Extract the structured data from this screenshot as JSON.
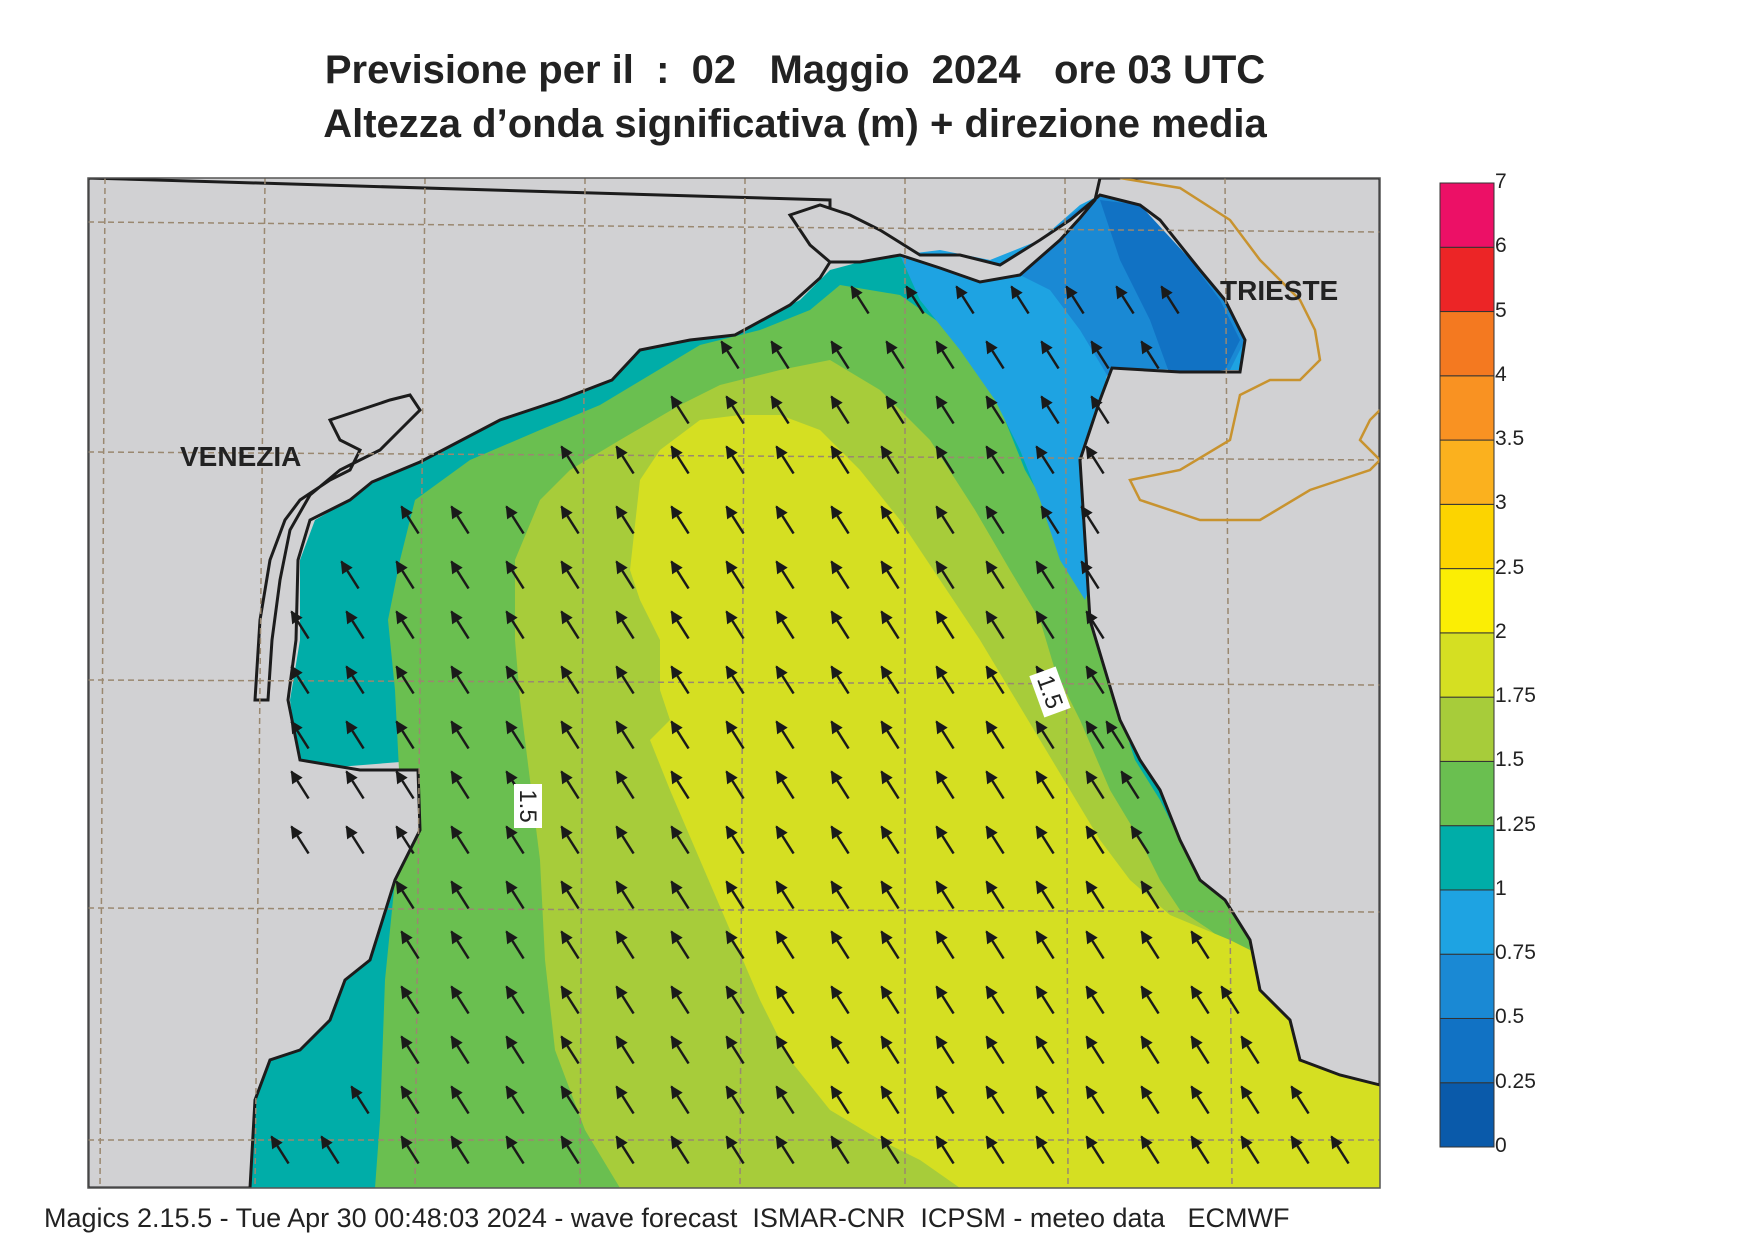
{
  "header": {
    "title_line1": "Previsione per il  :  02   Maggio  2024   ore 03 UTC",
    "title_line2": "Altezza d’onda significativa (m) + direzione media"
  },
  "map": {
    "cities": [
      {
        "name": "VENEZIA"
      },
      {
        "name": "TRIESTE"
      }
    ],
    "contour_labels": [
      "1.5",
      "1.5"
    ],
    "arrow_direction": "north-west"
  },
  "legend": {
    "ticks": [
      "0",
      "0.25",
      "0.5",
      "0.75",
      "1",
      "1.25",
      "1.5",
      "1.75",
      "2",
      "2.5",
      "3",
      "3.5",
      "4",
      "5",
      "6",
      "7"
    ],
    "colors": [
      "#0a5aaa",
      "#1172c4",
      "#1a89d4",
      "#1ea3e2",
      "#00ada8",
      "#6abf50",
      "#a7cc3a",
      "#d5df22",
      "#fbee04",
      "#fcd400",
      "#fbb11e",
      "#f99222",
      "#f47920",
      "#ec2526",
      "#ec1066"
    ]
  },
  "colors": {
    "land": "#d1d1d3",
    "coast": "#1c1c1c",
    "border": "#c8932f",
    "grid": "#9a8870"
  },
  "footer": {
    "text": "Magics 2.15.5 - Tue Apr 30 00:48:03 2024 - wave forecast  ISMAR-CNR  ICPSM - meteo data   ECMWF"
  }
}
